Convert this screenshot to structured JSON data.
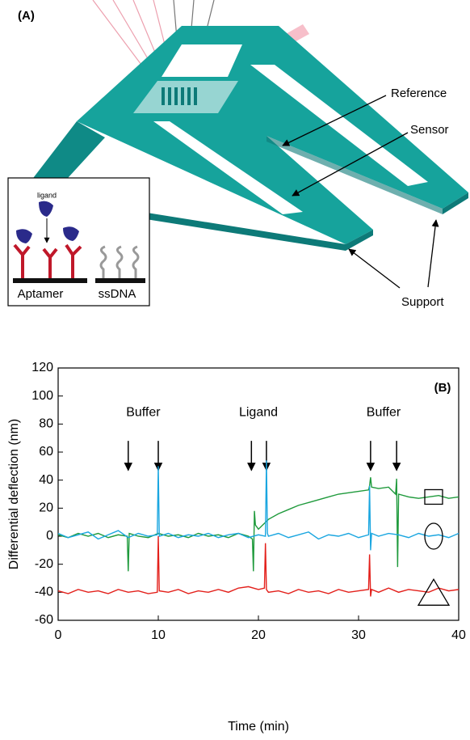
{
  "panel_a": {
    "label": "(A)",
    "callouts": [
      "Reference",
      "Sensor",
      "Support"
    ],
    "inset": {
      "ligand_label": "ligand",
      "labels": [
        "Aptamer",
        "ssDNA"
      ]
    }
  },
  "chart_data": {
    "type": "line",
    "panel_label": "(B)",
    "x_label": "Time (min)",
    "y_label": "Differential deflection (nm)",
    "xlim": [
      0,
      40
    ],
    "ylim": [
      -60,
      120
    ],
    "xticks": [
      0,
      10,
      20,
      30,
      40
    ],
    "yticks": [
      -60,
      -40,
      -20,
      0,
      20,
      40,
      60,
      80,
      100,
      120
    ],
    "grid": false,
    "annotations": [
      {
        "text": "Buffer",
        "x": 8.5,
        "arrows_x": [
          7,
          10
        ]
      },
      {
        "text": "Ligand",
        "x": 20,
        "arrows_x": [
          19.3,
          20.8
        ]
      },
      {
        "text": "Buffer",
        "x": 32.5,
        "arrows_x": [
          31.2,
          33.8
        ]
      }
    ],
    "annotation_y": 88,
    "arrow_y": [
      68,
      47
    ],
    "series": [
      {
        "color": "#1f9a3c",
        "marker": "square",
        "marker_at": [
          37.5,
          28
        ],
        "x": [
          0,
          1,
          2,
          3,
          4,
          5,
          6,
          6.9,
          7,
          7.1,
          8,
          9,
          10,
          11,
          12,
          13,
          14,
          15,
          16,
          17,
          18,
          19,
          19.4,
          19.5,
          19.6,
          19.7,
          20,
          21,
          22,
          23,
          24,
          25,
          26,
          27,
          28,
          29,
          30,
          31,
          31.1,
          31.2,
          31.3,
          32,
          33,
          33.7,
          33.8,
          33.9,
          34,
          35,
          36,
          37,
          38,
          39,
          40
        ],
        "values": [
          1,
          -1,
          2,
          0,
          2,
          -1,
          1,
          0,
          -25,
          2,
          0,
          -1,
          2,
          0,
          1,
          -1,
          2,
          0,
          1,
          -1,
          2,
          0,
          -2,
          -25,
          18,
          8,
          5,
          12,
          16,
          19,
          22,
          24,
          26,
          28,
          30,
          31,
          32,
          33,
          36,
          42,
          35,
          34,
          35,
          30,
          41,
          -22,
          30,
          28,
          27,
          28,
          29,
          27,
          28
        ]
      },
      {
        "color": "#1aa6e0",
        "marker": "circle",
        "marker_at": [
          37.5,
          0
        ],
        "x": [
          0,
          1,
          2,
          3,
          4,
          5,
          6,
          7,
          8,
          9,
          9.9,
          10,
          10.1,
          11,
          12,
          13,
          14,
          15,
          16,
          17,
          18,
          19,
          20,
          20.7,
          20.8,
          20.9,
          21,
          22,
          23,
          24,
          25,
          26,
          27,
          28,
          29,
          30,
          31,
          31.1,
          31.2,
          31.3,
          32,
          33,
          34,
          35,
          36,
          37,
          38,
          39,
          40
        ],
        "values": [
          2,
          -1,
          1,
          3,
          -2,
          1,
          4,
          -1,
          2,
          0,
          1,
          50,
          0,
          2,
          -1,
          1,
          0,
          2,
          -1,
          1,
          2,
          -1,
          1,
          0,
          54,
          2,
          0,
          2,
          -1,
          1,
          3,
          -2,
          1,
          0,
          2,
          -1,
          1,
          36,
          -10,
          2,
          0,
          2,
          1,
          -1,
          2,
          0,
          1,
          -1,
          2
        ]
      },
      {
        "color": "#e3201b",
        "marker": "triangle",
        "marker_at": [
          37.5,
          -40
        ],
        "x": [
          0,
          1,
          2,
          3,
          4,
          5,
          6,
          7,
          8,
          9,
          9.9,
          10,
          10.1,
          11,
          12,
          13,
          14,
          15,
          16,
          17,
          18,
          19,
          20,
          20.6,
          20.7,
          20.8,
          21,
          22,
          23,
          24,
          25,
          26,
          27,
          28,
          29,
          30,
          31,
          31.1,
          31.2,
          31.3,
          32,
          33,
          34,
          35,
          36,
          37,
          38,
          39,
          40
        ],
        "values": [
          -39,
          -41,
          -38,
          -40,
          -39,
          -41,
          -38,
          -40,
          -39,
          -41,
          -40,
          0,
          -39,
          -40,
          -38,
          -41,
          -39,
          -40,
          -38,
          -40,
          -37,
          -36,
          -38,
          -37,
          -5,
          -38,
          -40,
          -39,
          -41,
          -38,
          -40,
          -39,
          -41,
          -38,
          -40,
          -39,
          -38,
          -13,
          -43,
          -38,
          -40,
          -37,
          -40,
          -38,
          -39,
          -40,
          -37,
          -39,
          -38
        ]
      }
    ]
  }
}
